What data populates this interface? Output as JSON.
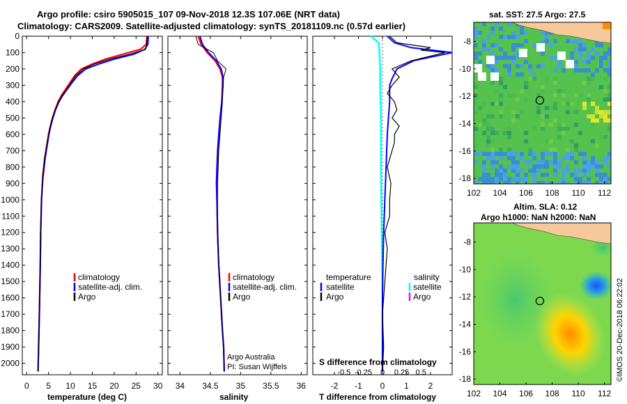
{
  "title_line1": "Argo profile: csiro 5905015_107 09-Nov-2018 12.3S 107.06E (NRT data)",
  "title_line2": "Climatology: CARS2009. Satellite-adjusted climatology: synTS_20181109.nc (0.57d earlier)",
  "credit_line1": "Argo Australia",
  "credit_line2": "PI: Susan Wijffels",
  "watermark": "©IMOS 20-Dec-2018 06:22:02",
  "colors": {
    "climatology": "#ff0000",
    "satellite": "#0000ff",
    "argo": "#000000",
    "salinity_satellite": "#00ffff",
    "salinity_argo": "#ff00ff",
    "land": "#f6c89a"
  },
  "chart_data": [
    {
      "type": "line",
      "panel": "temperature",
      "xlabel": "temperature (deg C)",
      "ylabel": "",
      "xlim": [
        -1,
        31
      ],
      "ylim": [
        2070,
        0
      ],
      "xticks": [
        "0",
        "5",
        "10",
        "15",
        "20",
        "25",
        "30"
      ],
      "xtick_values": [
        0,
        5,
        10,
        15,
        20,
        25,
        30
      ],
      "yticks": [
        "0",
        "100",
        "200",
        "300",
        "400",
        "500",
        "600",
        "700",
        "800",
        "900",
        "1000",
        "1100",
        "1200",
        "1300",
        "1400",
        "1500",
        "1600",
        "1700",
        "1800",
        "1900",
        "2000"
      ],
      "ytick_values": [
        0,
        100,
        200,
        300,
        400,
        500,
        600,
        700,
        800,
        900,
        1000,
        1100,
        1200,
        1300,
        1400,
        1500,
        1600,
        1700,
        1800,
        1900,
        2000
      ],
      "legend": [
        "climatology",
        "satellite-adj. clim.",
        "Argo"
      ],
      "series": [
        {
          "name": "climatology",
          "x": [
            27.5,
            27.3,
            26,
            22,
            18,
            15,
            12.5,
            11,
            10,
            9,
            8,
            7.2,
            6.5,
            5.9,
            5.4,
            5,
            4.7,
            4.4,
            4.1,
            3.9,
            3.7,
            3.6,
            3.4,
            3.3,
            3.2,
            3.1,
            2.9,
            2.6
          ],
          "y": [
            0,
            50,
            80,
            110,
            140,
            170,
            200,
            240,
            280,
            320,
            360,
            400,
            450,
            500,
            550,
            600,
            650,
            700,
            750,
            800,
            850,
            900,
            1000,
            1100,
            1200,
            1400,
            1700,
            2050
          ]
        },
        {
          "name": "satellite-adj. clim.",
          "x": [
            27.8,
            27.7,
            27,
            24.5,
            20,
            16.5,
            13.5,
            11.7,
            10.5,
            9.4,
            8.3,
            7.4,
            6.6,
            6,
            5.5,
            5.1,
            4.8,
            4.5,
            4.2,
            4,
            3.8,
            3.6,
            3.4,
            3.3,
            3.2,
            3.1,
            2.9,
            2.6
          ],
          "y": [
            0,
            50,
            80,
            110,
            140,
            170,
            200,
            240,
            280,
            320,
            360,
            400,
            450,
            500,
            550,
            600,
            650,
            700,
            750,
            800,
            850,
            900,
            1000,
            1100,
            1200,
            1400,
            1700,
            2050
          ]
        },
        {
          "name": "Argo",
          "x": [
            27.6,
            27.4,
            27.2,
            23.5,
            19,
            15.5,
            13,
            11.3,
            10.2,
            9.3,
            8.2,
            7.3,
            6.5,
            5.9,
            5.4,
            5,
            4.7,
            4.4,
            4.1,
            3.9,
            3.7,
            3.6,
            3.4,
            3.3,
            3.2,
            3.1,
            2.9,
            2.6
          ],
          "y": [
            0,
            50,
            80,
            110,
            140,
            170,
            200,
            240,
            280,
            320,
            360,
            400,
            450,
            500,
            550,
            600,
            650,
            700,
            750,
            800,
            850,
            900,
            1000,
            1100,
            1200,
            1400,
            1700,
            2050
          ]
        }
      ]
    },
    {
      "type": "line",
      "panel": "salinity",
      "xlabel": "salinity",
      "ylabel": "",
      "xlim": [
        33.8,
        36.1
      ],
      "ylim": [
        2070,
        0
      ],
      "xticks": [
        "34",
        "34.5",
        "35",
        "35.5",
        "36"
      ],
      "xtick_values": [
        34,
        34.5,
        35,
        35.5,
        36
      ],
      "legend": [
        "climatology",
        "satellite-adj. clim.",
        "Argo"
      ],
      "series": [
        {
          "name": "climatology",
          "x": [
            34.3,
            34.35,
            34.45,
            34.58,
            34.66,
            34.7,
            34.7,
            34.69,
            34.67,
            34.65,
            34.63,
            34.62,
            34.61,
            34.61,
            34.62,
            34.64,
            34.67,
            34.7,
            34.72,
            34.73
          ],
          "y": [
            0,
            50,
            100,
            150,
            200,
            250,
            300,
            400,
            500,
            600,
            700,
            800,
            900,
            1000,
            1200,
            1400,
            1600,
            1800,
            1900,
            2050
          ]
        },
        {
          "name": "satellite-adj. clim.",
          "x": [
            34.33,
            34.37,
            34.47,
            34.6,
            34.68,
            34.71,
            34.71,
            34.69,
            34.66,
            34.64,
            34.62,
            34.61,
            34.6,
            34.61,
            34.62,
            34.64,
            34.67,
            34.7,
            34.72,
            34.73
          ],
          "y": [
            0,
            50,
            100,
            150,
            200,
            250,
            300,
            400,
            500,
            600,
            700,
            800,
            900,
            1000,
            1200,
            1400,
            1600,
            1800,
            1900,
            2050
          ]
        },
        {
          "name": "Argo",
          "x": [
            34.26,
            34.3,
            34.55,
            34.62,
            34.76,
            34.72,
            34.71,
            34.7,
            34.68,
            34.66,
            34.64,
            34.63,
            34.62,
            34.62,
            34.62,
            34.64,
            34.67,
            34.7,
            34.72,
            34.73
          ],
          "y": [
            0,
            50,
            100,
            150,
            200,
            250,
            300,
            400,
            500,
            600,
            700,
            800,
            900,
            1000,
            1200,
            1400,
            1600,
            1800,
            1900,
            2050
          ]
        }
      ]
    },
    {
      "type": "line",
      "panel": "difference",
      "xlabel": "T difference from climatology",
      "xlabel2": "S difference from climatology",
      "ylabel": "",
      "xlim": [
        -2.9,
        2.9
      ],
      "ylim": [
        2070,
        0
      ],
      "xticks": [
        "-2",
        "-1",
        "0",
        "1",
        "2"
      ],
      "xtick_values": [
        -2,
        -1,
        0,
        1,
        2
      ],
      "sticks": [
        "-0.5",
        "-0.25",
        "0",
        "0.25",
        "0.5"
      ],
      "stick_values": [
        -0.5,
        -0.25,
        0,
        0.25,
        0.5
      ],
      "legend_left_title": "temperature",
      "legend_right_title": "salinity",
      "legend_left": [
        "satellite",
        "Argo"
      ],
      "legend_right": [
        "satellite",
        "Argo"
      ],
      "series": [
        {
          "name": "T satellite",
          "x": [
            0.2,
            0.5,
            1.2,
            2.9,
            1.3,
            0.6,
            0.4,
            0.3,
            0.3,
            0.2,
            0.15,
            0.1,
            0.05,
            0.02,
            0.0,
            0.0,
            0.0
          ],
          "y": [
            0,
            40,
            70,
            100,
            150,
            200,
            260,
            300,
            400,
            600,
            800,
            1000,
            1200,
            1400,
            1600,
            1800,
            2050
          ]
        },
        {
          "name": "T Argo",
          "x": [
            0.3,
            0.6,
            2.0,
            1.6,
            2.6,
            1.2,
            0.4,
            0.7,
            0.4,
            0.2,
            0.5,
            0.6,
            0.4,
            0.7,
            0.5,
            0.5,
            0.4,
            0.2,
            0.35,
            0.3,
            0.3,
            0.1,
            0.2,
            0.1,
            0.0,
            0.05,
            0.0
          ],
          "y": [
            0,
            40,
            70,
            85,
            100,
            150,
            200,
            250,
            300,
            350,
            400,
            450,
            500,
            550,
            600,
            650,
            700,
            800,
            900,
            1000,
            1100,
            1200,
            1300,
            1500,
            1700,
            1900,
            2050
          ]
        },
        {
          "name": "S satellite",
          "x": [
            -0.15,
            -0.05,
            -0.04,
            -0.03,
            -0.03,
            -0.02,
            -0.02,
            -0.01,
            0.0,
            0.0
          ],
          "y": [
            0,
            40,
            100,
            200,
            300,
            500,
            800,
            1200,
            1600,
            2050
          ]
        },
        {
          "name": "S Argo",
          "x": [],
          "y": []
        }
      ]
    },
    {
      "type": "heatmap",
      "panel": "map_sst",
      "title": "sat. SST: 27.5 Argo: 27.5",
      "xlim": [
        102,
        112.5
      ],
      "ylim": [
        -18.4,
        -6.6
      ],
      "xticks": [
        "102",
        "104",
        "106",
        "108",
        "110",
        "112"
      ],
      "xtick_values": [
        102,
        104,
        106,
        108,
        110,
        112
      ],
      "yticks": [
        "-8",
        "-10",
        "-12",
        "-14",
        "-16",
        "-18"
      ],
      "ytick_values": [
        -8,
        -10,
        -12,
        -14,
        -16,
        -18
      ],
      "argo_position": [
        107.06,
        -12.3
      ]
    },
    {
      "type": "heatmap",
      "panel": "map_sla",
      "title": "Altim. SLA: 0.12",
      "subtitle": "Argo h1000: NaN h2000: NaN",
      "xlim": [
        102,
        112.5
      ],
      "ylim": [
        -18.4,
        -6.6
      ],
      "xticks": [
        "102",
        "104",
        "106",
        "108",
        "110",
        "112"
      ],
      "xtick_values": [
        102,
        104,
        106,
        108,
        110,
        112
      ],
      "yticks": [
        "-8",
        "-10",
        "-12",
        "-14",
        "-16",
        "-18"
      ],
      "ytick_values": [
        -8,
        -10,
        -12,
        -14,
        -16,
        -18
      ],
      "argo_position": [
        107.06,
        -12.3
      ]
    }
  ]
}
